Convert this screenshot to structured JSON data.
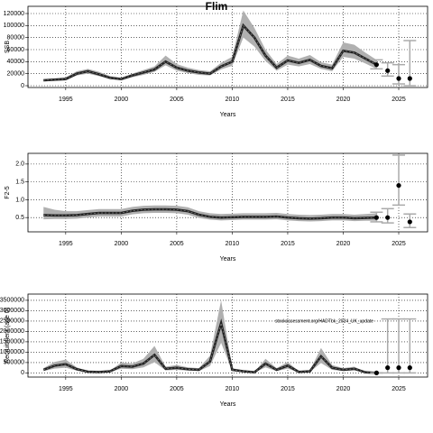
{
  "title": "Flim",
  "chart_data": [
    {
      "type": "line",
      "ylabel": "SSB",
      "xlabel": "Years",
      "x": [
        1993,
        1994,
        1995,
        1996,
        1997,
        1998,
        1999,
        2000,
        2001,
        2002,
        2003,
        2004,
        2005,
        2006,
        2007,
        2008,
        2009,
        2010,
        2011,
        2012,
        2013,
        2014,
        2015,
        2016,
        2017,
        2018,
        2019,
        2020,
        2021,
        2022,
        2023
      ],
      "values": [
        9000,
        10000,
        11000,
        20000,
        24000,
        19000,
        13000,
        11000,
        17000,
        22000,
        27000,
        40000,
        30000,
        25000,
        22000,
        20000,
        32000,
        40000,
        100000,
        80000,
        50000,
        30000,
        42000,
        38000,
        43000,
        33000,
        29000,
        58000,
        55000,
        45000,
        35000
      ],
      "lower": [
        7000,
        8000,
        9000,
        17000,
        20000,
        16000,
        11000,
        9000,
        14000,
        18000,
        23000,
        34000,
        25000,
        21000,
        18000,
        17000,
        27000,
        33000,
        80000,
        65000,
        41000,
        25000,
        35000,
        32000,
        36000,
        28000,
        24000,
        48000,
        45000,
        37000,
        28000
      ],
      "upper": [
        11000,
        12000,
        14000,
        24000,
        28000,
        23000,
        16000,
        13000,
        20000,
        26000,
        32000,
        50000,
        36000,
        30000,
        26000,
        24000,
        38000,
        48000,
        125000,
        96000,
        60000,
        36000,
        50000,
        45000,
        51000,
        39000,
        35000,
        72000,
        68000,
        55000,
        43000
      ],
      "proj_x": [
        2023,
        2024,
        2025,
        2026
      ],
      "proj_values": [
        35000,
        25000,
        12000,
        12000
      ],
      "proj_lower": [
        28000,
        16000,
        3000,
        0
      ],
      "proj_upper": [
        43000,
        38000,
        35000,
        75000
      ],
      "xlim": [
        1991.6,
        2027.6
      ],
      "ylim": [
        -3000,
        132000
      ],
      "xticks": [
        1995,
        2000,
        2005,
        2010,
        2015,
        2020,
        2025
      ],
      "yticks": [
        0,
        20000,
        40000,
        60000,
        80000,
        100000,
        120000
      ],
      "grid": true
    },
    {
      "type": "line",
      "ylabel": "F2-5",
      "xlabel": "Years",
      "x": [
        1993,
        1994,
        1995,
        1996,
        1997,
        1998,
        1999,
        2000,
        2001,
        2002,
        2003,
        2004,
        2005,
        2006,
        2007,
        2008,
        2009,
        2010,
        2011,
        2012,
        2013,
        2014,
        2015,
        2016,
        2017,
        2018,
        2019,
        2020,
        2021,
        2022,
        2023
      ],
      "values": [
        0.57,
        0.56,
        0.56,
        0.57,
        0.6,
        0.63,
        0.63,
        0.63,
        0.69,
        0.72,
        0.73,
        0.73,
        0.72,
        0.68,
        0.58,
        0.52,
        0.5,
        0.51,
        0.52,
        0.52,
        0.52,
        0.53,
        0.5,
        0.48,
        0.47,
        0.48,
        0.5,
        0.5,
        0.48,
        0.49,
        0.5
      ],
      "lower": [
        0.45,
        0.46,
        0.46,
        0.47,
        0.5,
        0.53,
        0.53,
        0.53,
        0.59,
        0.62,
        0.63,
        0.63,
        0.62,
        0.58,
        0.49,
        0.44,
        0.42,
        0.43,
        0.44,
        0.44,
        0.44,
        0.45,
        0.42,
        0.4,
        0.39,
        0.4,
        0.42,
        0.42,
        0.4,
        0.41,
        0.41
      ],
      "upper": [
        0.8,
        0.72,
        0.68,
        0.68,
        0.71,
        0.74,
        0.74,
        0.74,
        0.8,
        0.83,
        0.84,
        0.84,
        0.83,
        0.79,
        0.68,
        0.62,
        0.6,
        0.61,
        0.62,
        0.62,
        0.62,
        0.63,
        0.6,
        0.58,
        0.57,
        0.58,
        0.6,
        0.6,
        0.58,
        0.6,
        0.62
      ],
      "proj_x": [
        2023,
        2024,
        2025,
        2026
      ],
      "proj_values": [
        0.5,
        0.5,
        1.4,
        0.38
      ],
      "proj_lower": [
        0.38,
        0.35,
        0.85,
        0.22
      ],
      "proj_upper": [
        0.65,
        0.75,
        2.25,
        0.6
      ],
      "xlim": [
        1991.6,
        2027.6
      ],
      "ylim": [
        0.1,
        2.3
      ],
      "xticks": [
        1995,
        2000,
        2005,
        2010,
        2015,
        2020,
        2025
      ],
      "yticks": [
        {
          "value": 0.5,
          "label": "0.5"
        },
        {
          "value": 1,
          "label": "1.0"
        },
        {
          "value": 1.5,
          "label": "1.5"
        },
        {
          "value": 2,
          "label": "2.0"
        }
      ],
      "grid": true
    },
    {
      "type": "line",
      "ylabel": "Recruitment (age 0)",
      "xlabel": "Years",
      "annotation": "stockassessment.org/HADTbk_2024_UK_update",
      "x": [
        1993,
        1994,
        1995,
        1996,
        1997,
        1998,
        1999,
        2000,
        2001,
        2002,
        2003,
        2004,
        2005,
        2006,
        2007,
        2008,
        2009,
        2010,
        2011,
        2012,
        2013,
        2014,
        2015,
        2016,
        2017,
        2018,
        2019,
        2020,
        2021,
        2022,
        2023
      ],
      "values": [
        150000,
        350000,
        420000,
        180000,
        60000,
        40000,
        80000,
        330000,
        300000,
        450000,
        870000,
        200000,
        250000,
        180000,
        150000,
        550000,
        2400000,
        150000,
        80000,
        30000,
        450000,
        150000,
        350000,
        50000,
        80000,
        800000,
        250000,
        150000,
        200000,
        30000,
        0
      ],
      "lower": [
        90000,
        210000,
        250000,
        110000,
        35000,
        24000,
        48000,
        200000,
        180000,
        270000,
        520000,
        120000,
        150000,
        110000,
        90000,
        330000,
        1450000,
        90000,
        48000,
        18000,
        270000,
        90000,
        210000,
        30000,
        48000,
        480000,
        150000,
        90000,
        120000,
        18000,
        0
      ],
      "upper": [
        230000,
        530000,
        640000,
        270000,
        90000,
        60000,
        120000,
        500000,
        450000,
        680000,
        1300000,
        300000,
        380000,
        270000,
        230000,
        830000,
        3500000,
        230000,
        120000,
        45000,
        680000,
        230000,
        530000,
        75000,
        120000,
        1200000,
        380000,
        230000,
        300000,
        45000,
        0
      ],
      "proj_x": [
        2023,
        2024,
        2025,
        2026
      ],
      "proj_values": [
        0,
        250000,
        250000,
        250000
      ],
      "proj_lower": [
        0,
        0,
        0,
        0
      ],
      "proj_upper": [
        0,
        2600000,
        2600000,
        2600000
      ],
      "xlim": [
        1991.6,
        2027.6
      ],
      "ylim": [
        -200000,
        3800000
      ],
      "xticks": [
        1995,
        2000,
        2005,
        2010,
        2015,
        2020,
        2025
      ],
      "yticks": [
        0,
        500000,
        1000000,
        1500000,
        2000000,
        2500000,
        3000000,
        3500000
      ],
      "grid": true
    }
  ]
}
